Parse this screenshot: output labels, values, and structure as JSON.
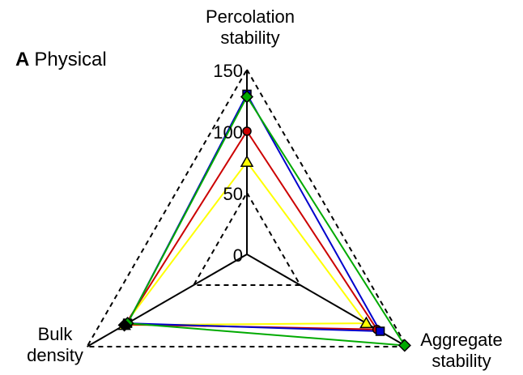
{
  "panel_letter": "A",
  "panel_title": "Physical",
  "chart_data": {
    "type": "radar",
    "axes": [
      {
        "label_lines": [
          "Percolation",
          "stability"
        ]
      },
      {
        "label_lines": [
          "Aggregate",
          "stability"
        ]
      },
      {
        "label_lines": [
          "Bulk",
          "density"
        ]
      }
    ],
    "scale": {
      "min": 0,
      "max": 150,
      "ticks": [
        0,
        50,
        100,
        150
      ],
      "gridlines_dashed": [
        50,
        150
      ]
    },
    "series": [
      {
        "color": "#00aa00",
        "marker": "diamond",
        "values": [
          128,
          148,
          112
        ]
      },
      {
        "color": "#0000cc",
        "marker": "square",
        "values": [
          130,
          125,
          112
        ]
      },
      {
        "color": "#cc0000",
        "marker": "circle",
        "values": [
          100,
          122,
          114
        ]
      },
      {
        "color": "#ffff00",
        "marker": "triangle",
        "values": [
          75,
          112,
          115
        ]
      },
      {
        "color": "#000000",
        "marker": "diamond",
        "values": [
          null,
          null,
          115
        ]
      }
    ]
  }
}
